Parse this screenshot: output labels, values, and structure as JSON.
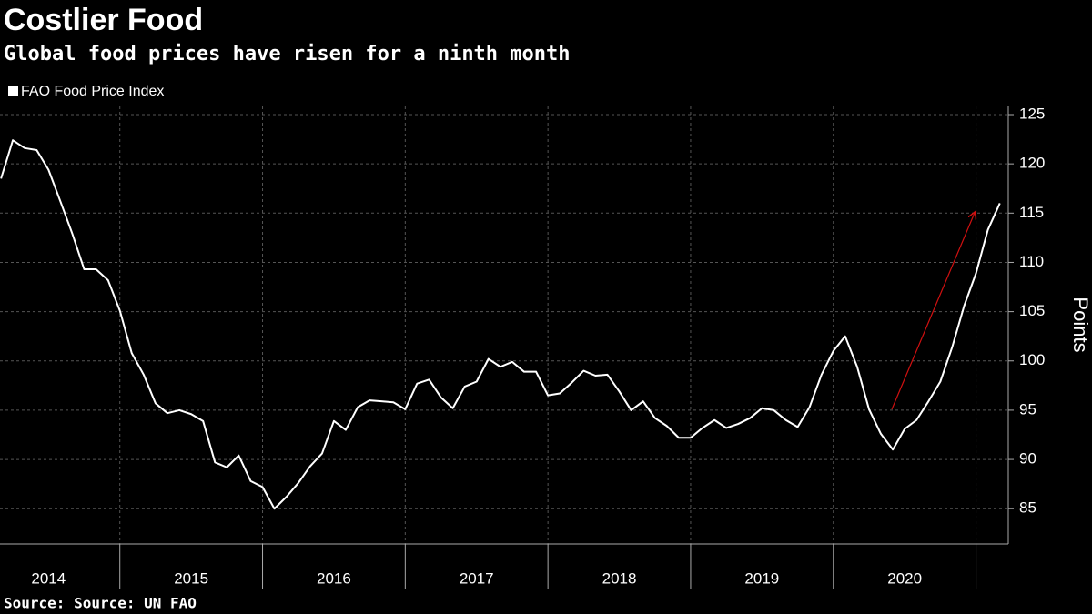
{
  "chart_data": {
    "type": "line",
    "title": "Costlier Food",
    "subtitle": "Global food prices have risen for a ninth month",
    "source": "Source: Source: UN FAO",
    "y_axis_label": "Points",
    "x": [
      2014.167,
      2014.25,
      2014.333,
      2014.417,
      2014.5,
      2014.583,
      2014.667,
      2014.75,
      2014.833,
      2014.917,
      2015.0,
      2015.083,
      2015.167,
      2015.25,
      2015.333,
      2015.417,
      2015.5,
      2015.583,
      2015.667,
      2015.75,
      2015.833,
      2015.917,
      2016.0,
      2016.083,
      2016.167,
      2016.25,
      2016.333,
      2016.417,
      2016.5,
      2016.583,
      2016.667,
      2016.75,
      2016.833,
      2016.917,
      2017.0,
      2017.083,
      2017.167,
      2017.25,
      2017.333,
      2017.417,
      2017.5,
      2017.583,
      2017.667,
      2017.75,
      2017.833,
      2017.917,
      2018.0,
      2018.083,
      2018.167,
      2018.25,
      2018.333,
      2018.417,
      2018.5,
      2018.583,
      2018.667,
      2018.75,
      2018.833,
      2018.917,
      2019.0,
      2019.083,
      2019.167,
      2019.25,
      2019.333,
      2019.417,
      2019.5,
      2019.583,
      2019.667,
      2019.75,
      2019.833,
      2019.917,
      2020.0,
      2020.083,
      2020.167,
      2020.25,
      2020.333,
      2020.417,
      2020.5,
      2020.583,
      2020.667,
      2020.75,
      2020.833,
      2020.917,
      2021.0,
      2021.083,
      2021.167
    ],
    "series": [
      {
        "name": "FAO Food Price Index",
        "color": "#ffffff",
        "values": [
          118.5,
          122.4,
          121.6,
          121.4,
          119.4,
          116.2,
          112.9,
          109.3,
          109.3,
          108.2,
          105.1,
          100.8,
          98.6,
          95.7,
          94.7,
          95.0,
          94.6,
          93.9,
          89.7,
          89.2,
          90.4,
          87.8,
          87.2,
          85.0,
          86.2,
          87.6,
          89.3,
          90.6,
          93.9,
          93.0,
          95.3,
          96.0,
          95.9,
          95.8,
          95.1,
          97.7,
          98.1,
          96.3,
          95.2,
          97.4,
          97.9,
          100.2,
          99.4,
          99.9,
          98.9,
          98.9,
          96.5,
          96.7,
          97.8,
          99.0,
          98.5,
          98.6,
          96.9,
          95.0,
          95.9,
          94.2,
          93.4,
          92.2,
          92.2,
          93.2,
          94.0,
          93.2,
          93.6,
          94.2,
          95.2,
          95.0,
          94.0,
          93.3,
          95.3,
          98.6,
          101.0,
          102.5,
          99.4,
          95.1,
          92.6,
          91.0,
          93.1,
          94.0,
          95.9,
          97.9,
          101.4,
          105.6,
          108.9,
          113.3,
          116.0
        ]
      }
    ],
    "xlim": [
      2014.16,
      2021.226
    ],
    "xticks": [
      {
        "value": 2014.5,
        "label": "2014"
      },
      {
        "value": 2015.5,
        "label": "2015"
      },
      {
        "value": 2016.5,
        "label": "2016"
      },
      {
        "value": 2017.5,
        "label": "2017"
      },
      {
        "value": 2018.5,
        "label": "2018"
      },
      {
        "value": 2019.5,
        "label": "2019"
      },
      {
        "value": 2020.5,
        "label": "2020"
      }
    ],
    "xgrid": [
      2015,
      2016,
      2017,
      2018,
      2019,
      2020,
      2021
    ],
    "ylim": [
      81.42,
      125.83
    ],
    "yticks": [
      85,
      90,
      95,
      100,
      105,
      110,
      115,
      120,
      125
    ],
    "grid": true
  }
}
